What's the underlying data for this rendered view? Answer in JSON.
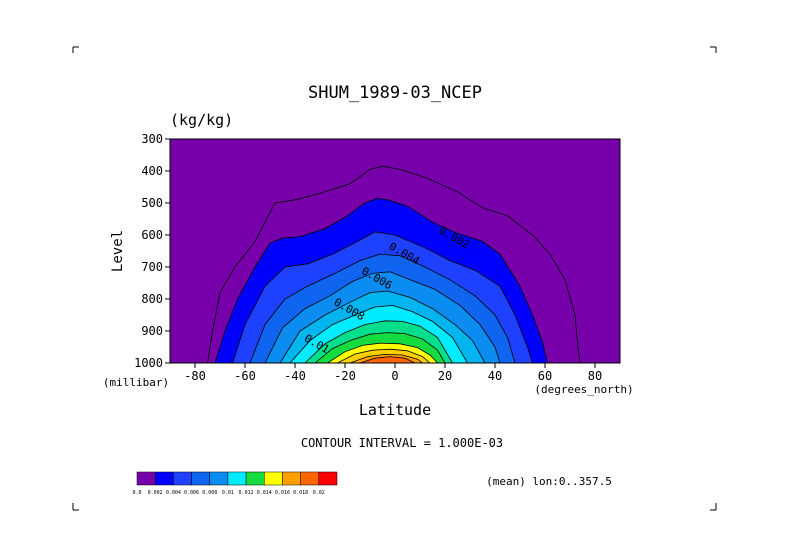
{
  "chart_data": {
    "type": "contour",
    "title": "SHUM_1989-03_NCEP",
    "units": "(kg/kg)",
    "xlabel": "Latitude",
    "x_unit": "(degrees_north)",
    "ylabel": "Level",
    "y_unit": "(millibar)",
    "xlim": [
      -90,
      90
    ],
    "ylim": [
      1000,
      300
    ],
    "x_ticks": [
      "-80",
      "-60",
      "-40",
      "-20",
      "0",
      "20",
      "40",
      "60",
      "80"
    ],
    "x_tick_values": [
      -80,
      -60,
      -40,
      -20,
      0,
      20,
      40,
      60,
      80
    ],
    "y_ticks": [
      "300",
      "400",
      "500",
      "600",
      "700",
      "800",
      "900",
      "1000"
    ],
    "y_tick_values": [
      300,
      400,
      500,
      600,
      700,
      800,
      900,
      1000
    ],
    "contour_interval": "CONTOUR INTERVAL = 1.000E-03",
    "footer_note": "(mean) lon:0..357.5",
    "contour_labels": [
      {
        "text": "0.002",
        "lat": 23,
        "lev": 618
      },
      {
        "text": "0.004",
        "lat": 3,
        "lev": 668
      },
      {
        "text": "0.006",
        "lat": -8,
        "lev": 745
      },
      {
        "text": "0.008",
        "lat": -19,
        "lev": 842
      },
      {
        "text": "0.01",
        "lat": -32,
        "lev": 950
      }
    ],
    "fill_regions": [
      {
        "min": 0.002,
        "color": "#0000ff",
        "pts": [
          [
            -72,
            1000
          ],
          [
            -68,
            900
          ],
          [
            -63,
            800
          ],
          [
            -56,
            700
          ],
          [
            -50,
            625
          ],
          [
            -45,
            610
          ],
          [
            -38,
            605
          ],
          [
            -28,
            580
          ],
          [
            -20,
            545
          ],
          [
            -12,
            500
          ],
          [
            -7,
            485
          ],
          [
            -3,
            490
          ],
          [
            5,
            510
          ],
          [
            15,
            560
          ],
          [
            25,
            595
          ],
          [
            35,
            620
          ],
          [
            42,
            660
          ],
          [
            50,
            760
          ],
          [
            55,
            850
          ],
          [
            59,
            935
          ],
          [
            61,
            1000
          ]
        ]
      },
      {
        "min": 0.003,
        "color": "#1e40ff",
        "pts": [
          [
            -65,
            1000
          ],
          [
            -60,
            880
          ],
          [
            -52,
            760
          ],
          [
            -44,
            700
          ],
          [
            -35,
            690
          ],
          [
            -25,
            660
          ],
          [
            -15,
            620
          ],
          [
            -8,
            590
          ],
          [
            0,
            600
          ],
          [
            12,
            640
          ],
          [
            22,
            680
          ],
          [
            32,
            710
          ],
          [
            42,
            760
          ],
          [
            48,
            850
          ],
          [
            53,
            950
          ],
          [
            55,
            1000
          ]
        ]
      },
      {
        "min": 0.004,
        "color": "#0f64f0",
        "pts": [
          [
            -58,
            1000
          ],
          [
            -52,
            880
          ],
          [
            -44,
            800
          ],
          [
            -35,
            760
          ],
          [
            -24,
            720
          ],
          [
            -14,
            680
          ],
          [
            -6,
            660
          ],
          [
            2,
            665
          ],
          [
            12,
            700
          ],
          [
            22,
            740
          ],
          [
            32,
            790
          ],
          [
            40,
            850
          ],
          [
            45,
            920
          ],
          [
            48,
            1000
          ]
        ]
      },
      {
        "min": 0.005,
        "color": "#0a8cf0",
        "pts": [
          [
            -52,
            1000
          ],
          [
            -45,
            890
          ],
          [
            -36,
            830
          ],
          [
            -26,
            790
          ],
          [
            -17,
            745
          ],
          [
            -9,
            720
          ],
          [
            -2,
            715
          ],
          [
            6,
            740
          ],
          [
            16,
            770
          ],
          [
            26,
            820
          ],
          [
            34,
            880
          ],
          [
            40,
            950
          ],
          [
            42,
            1000
          ]
        ]
      },
      {
        "min": 0.006,
        "color": "#00b4f0",
        "pts": [
          [
            -46,
            1000
          ],
          [
            -38,
            900
          ],
          [
            -28,
            850
          ],
          [
            -18,
            810
          ],
          [
            -10,
            780
          ],
          [
            -3,
            775
          ],
          [
            6,
            795
          ],
          [
            15,
            830
          ],
          [
            24,
            880
          ],
          [
            31,
            930
          ],
          [
            36,
            1000
          ]
        ]
      },
      {
        "min": 0.007,
        "color": "#00ebff",
        "pts": [
          [
            -42,
            1000
          ],
          [
            -34,
            930
          ],
          [
            -25,
            880
          ],
          [
            -16,
            850
          ],
          [
            -8,
            825
          ],
          [
            -1,
            820
          ],
          [
            7,
            840
          ],
          [
            15,
            870
          ],
          [
            23,
            920
          ],
          [
            29,
            1000
          ]
        ]
      },
      {
        "min": 0.009,
        "color": "#00e08c",
        "pts": [
          [
            -36,
            1000
          ],
          [
            -28,
            940
          ],
          [
            -20,
            905
          ],
          [
            -12,
            880
          ],
          [
            -4,
            868
          ],
          [
            3,
            870
          ],
          [
            10,
            885
          ],
          [
            17,
            920
          ],
          [
            23,
            1000
          ]
        ]
      },
      {
        "min": 0.01,
        "color": "#14dc40",
        "pts": [
          [
            -32,
            1000
          ],
          [
            -25,
            955
          ],
          [
            -18,
            930
          ],
          [
            -10,
            910
          ],
          [
            -3,
            905
          ],
          [
            4,
            908
          ],
          [
            11,
            925
          ],
          [
            17,
            960
          ],
          [
            20,
            1000
          ]
        ]
      },
      {
        "min": 0.012,
        "color": "#ffff00",
        "pts": [
          [
            -27,
            1000
          ],
          [
            -20,
            965
          ],
          [
            -13,
            945
          ],
          [
            -6,
            938
          ],
          [
            2,
            940
          ],
          [
            9,
            952
          ],
          [
            14,
            975
          ],
          [
            17,
            1000
          ]
        ]
      },
      {
        "min": 0.013,
        "color": "#ffd000",
        "pts": [
          [
            -23,
            1000
          ],
          [
            -16,
            972
          ],
          [
            -9,
            960
          ],
          [
            -2,
            957
          ],
          [
            5,
            962
          ],
          [
            11,
            980
          ],
          [
            14,
            1000
          ]
        ]
      },
      {
        "min": 0.014,
        "color": "#ffa000",
        "pts": [
          [
            -18,
            1000
          ],
          [
            -11,
            980
          ],
          [
            -4,
            973
          ],
          [
            3,
            975
          ],
          [
            9,
            988
          ],
          [
            11,
            1000
          ]
        ]
      },
      {
        "min": 0.016,
        "color": "#ff6400",
        "pts": [
          [
            -14,
            1000
          ],
          [
            -8,
            985
          ],
          [
            -2,
            980
          ],
          [
            4,
            985
          ],
          [
            8,
            1000
          ]
        ]
      }
    ],
    "outer_contour_0001": [
      [
        -75,
        1000
      ],
      [
        -73,
        900
      ],
      [
        -70,
        780
      ],
      [
        -64,
        700
      ],
      [
        -56,
        620
      ],
      [
        -48,
        500
      ],
      [
        -40,
        490
      ],
      [
        -30,
        470
      ],
      [
        -18,
        440
      ],
      [
        -10,
        395
      ],
      [
        -5,
        385
      ],
      [
        2,
        395
      ],
      [
        12,
        420
      ],
      [
        25,
        465
      ],
      [
        35,
        515
      ],
      [
        45,
        540
      ],
      [
        55,
        600
      ],
      [
        62,
        660
      ],
      [
        68,
        740
      ],
      [
        72,
        850
      ],
      [
        73,
        940
      ],
      [
        74,
        1000
      ]
    ]
  },
  "colorbar": {
    "colors": [
      "#7800aa",
      "#0000ff",
      "#1e40ff",
      "#0f64f0",
      "#0a8cf0",
      "#00ebff",
      "#14dc40",
      "#ffff00",
      "#ffa000",
      "#ff6400",
      "#ff0000"
    ],
    "labels": [
      "0.0",
      "0.002",
      "0.004",
      "0.006",
      "0.008",
      "0.01",
      "0.012",
      "0.014",
      "0.016",
      "0.018",
      "0.02"
    ]
  },
  "background_color": "#7800aa"
}
